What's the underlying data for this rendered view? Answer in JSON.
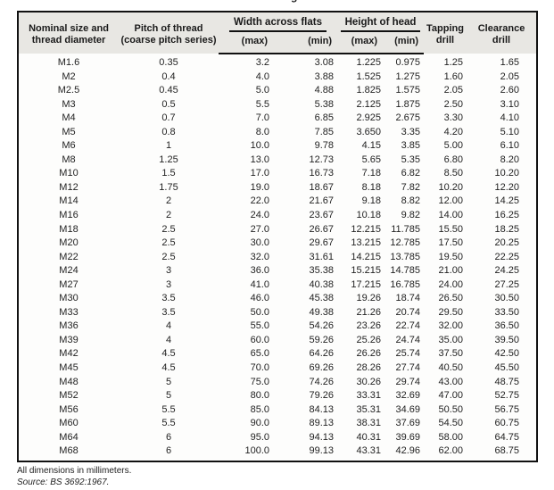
{
  "page": {
    "cutoff_title_fragment": "g",
    "footnotes": {
      "dimensions_note": "All dimensions in millimeters.",
      "source_note": "Source: BS 3692:1967."
    }
  },
  "colors": {
    "header_bg": "#e8e7e3",
    "border": "#111111",
    "text": "#1c1c1c"
  },
  "table": {
    "headers": {
      "nominal_line1": "Nominal size and",
      "nominal_line2": "thread diameter",
      "pitch_line1": "Pitch of thread",
      "pitch_line2": "(coarse pitch series)",
      "width_group": "Width across flats",
      "height_group": "Height of head",
      "width_max": "(max)",
      "width_min": "(min)",
      "height_max": "(max)",
      "height_min": "(min)",
      "tapping_line1": "Tapping",
      "tapping_line2": "drill",
      "clearance_line1": "Clearance",
      "clearance_line2": "drill"
    },
    "rows": [
      [
        "M1.6",
        "0.35",
        "3.2",
        "3.08",
        "1.225",
        "0.975",
        "1.25",
        "1.65"
      ],
      [
        "M2",
        "0.4",
        "4.0",
        "3.88",
        "1.525",
        "1.275",
        "1.60",
        "2.05"
      ],
      [
        "M2.5",
        "0.45",
        "5.0",
        "4.88",
        "1.825",
        "1.575",
        "2.05",
        "2.60"
      ],
      [
        "M3",
        "0.5",
        "5.5",
        "5.38",
        "2.125",
        "1.875",
        "2.50",
        "3.10"
      ],
      [
        "M4",
        "0.7",
        "7.0",
        "6.85",
        "2.925",
        "2.675",
        "3.30",
        "4.10"
      ],
      [
        "M5",
        "0.8",
        "8.0",
        "7.85",
        "3.650",
        "3.35",
        "4.20",
        "5.10"
      ],
      [
        "M6",
        "1",
        "10.0",
        "9.78",
        "4.15",
        "3.85",
        "5.00",
        "6.10"
      ],
      [
        "M8",
        "1.25",
        "13.0",
        "12.73",
        "5.65",
        "5.35",
        "6.80",
        "8.20"
      ],
      [
        "M10",
        "1.5",
        "17.0",
        "16.73",
        "7.18",
        "6.82",
        "8.50",
        "10.20"
      ],
      [
        "M12",
        "1.75",
        "19.0",
        "18.67",
        "8.18",
        "7.82",
        "10.20",
        "12.20"
      ],
      [
        "M14",
        "2",
        "22.0",
        "21.67",
        "9.18",
        "8.82",
        "12.00",
        "14.25"
      ],
      [
        "M16",
        "2",
        "24.0",
        "23.67",
        "10.18",
        "9.82",
        "14.00",
        "16.25"
      ],
      [
        "M18",
        "2.5",
        "27.0",
        "26.67",
        "12.215",
        "11.785",
        "15.50",
        "18.25"
      ],
      [
        "M20",
        "2.5",
        "30.0",
        "29.67",
        "13.215",
        "12.785",
        "17.50",
        "20.25"
      ],
      [
        "M22",
        "2.5",
        "32.0",
        "31.61",
        "14.215",
        "13.785",
        "19.50",
        "22.25"
      ],
      [
        "M24",
        "3",
        "36.0",
        "35.38",
        "15.215",
        "14.785",
        "21.00",
        "24.25"
      ],
      [
        "M27",
        "3",
        "41.0",
        "40.38",
        "17.215",
        "16.785",
        "24.00",
        "27.25"
      ],
      [
        "M30",
        "3.5",
        "46.0",
        "45.38",
        "19.26",
        "18.74",
        "26.50",
        "30.50"
      ],
      [
        "M33",
        "3.5",
        "50.0",
        "49.38",
        "21.26",
        "20.74",
        "29.50",
        "33.50"
      ],
      [
        "M36",
        "4",
        "55.0",
        "54.26",
        "23.26",
        "22.74",
        "32.00",
        "36.50"
      ],
      [
        "M39",
        "4",
        "60.0",
        "59.26",
        "25.26",
        "24.74",
        "35.00",
        "39.50"
      ],
      [
        "M42",
        "4.5",
        "65.0",
        "64.26",
        "26.26",
        "25.74",
        "37.50",
        "42.50"
      ],
      [
        "M45",
        "4.5",
        "70.0",
        "69.26",
        "28.26",
        "27.74",
        "40.50",
        "45.50"
      ],
      [
        "M48",
        "5",
        "75.0",
        "74.26",
        "30.26",
        "29.74",
        "43.00",
        "48.75"
      ],
      [
        "M52",
        "5",
        "80.0",
        "79.26",
        "33.31",
        "32.69",
        "47.00",
        "52.75"
      ],
      [
        "M56",
        "5.5",
        "85.0",
        "84.13",
        "35.31",
        "34.69",
        "50.50",
        "56.75"
      ],
      [
        "M60",
        "5.5",
        "90.0",
        "89.13",
        "38.31",
        "37.69",
        "54.50",
        "60.75"
      ],
      [
        "M64",
        "6",
        "95.0",
        "94.13",
        "40.31",
        "39.69",
        "58.00",
        "64.75"
      ],
      [
        "M68",
        "6",
        "100.0",
        "99.13",
        "43.31",
        "42.96",
        "62.00",
        "68.75"
      ]
    ]
  }
}
